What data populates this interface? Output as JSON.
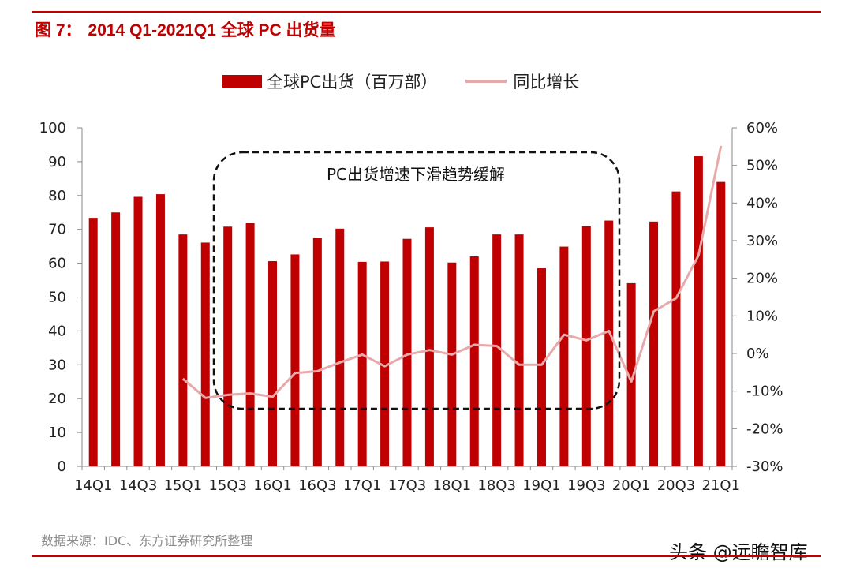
{
  "figure": {
    "number": "图 7：",
    "title": "2014 Q1-2021Q1 全球 PC 出货量"
  },
  "source": "数据来源：IDC、东方证券研究所整理",
  "watermark": "头条 @远瞻智库",
  "colors": {
    "bar": "#c00000",
    "line": "#e8a9ab",
    "title": "#c00000",
    "axis": "#888888"
  },
  "chart_data": {
    "type": "bar+line",
    "title": "2014 Q1-2021Q1 全球 PC 出货量",
    "annotation": "PC出货增速下滑趋势缓解",
    "categories": [
      "14Q1",
      "14Q2",
      "14Q3",
      "14Q4",
      "15Q1",
      "15Q2",
      "15Q3",
      "15Q4",
      "16Q1",
      "16Q2",
      "16Q3",
      "16Q4",
      "17Q1",
      "17Q2",
      "17Q3",
      "17Q4",
      "18Q1",
      "18Q2",
      "18Q3",
      "18Q4",
      "19Q1",
      "19Q2",
      "19Q3",
      "19Q4",
      "20Q1",
      "20Q2",
      "20Q3",
      "20Q4",
      "21Q1"
    ],
    "x_tick_labels": [
      "14Q1",
      "14Q3",
      "15Q1",
      "15Q3",
      "16Q1",
      "16Q3",
      "17Q1",
      "17Q3",
      "18Q1",
      "18Q3",
      "19Q1",
      "19Q3",
      "20Q1",
      "20Q3",
      "21Q1"
    ],
    "series": [
      {
        "name": "全球PC出货（百万部）",
        "axis": "left",
        "type": "bar",
        "values": [
          73.4,
          75.0,
          79.6,
          80.4,
          68.5,
          66.1,
          70.8,
          71.9,
          60.6,
          62.6,
          67.5,
          70.2,
          60.4,
          60.5,
          67.2,
          70.6,
          60.2,
          62.0,
          68.5,
          68.5,
          58.5,
          64.9,
          70.9,
          72.6,
          54.1,
          72.3,
          81.2,
          91.6,
          84.0
        ]
      },
      {
        "name": "同比增长",
        "axis": "right",
        "type": "line",
        "values": [
          null,
          null,
          null,
          null,
          -6.7,
          -11.8,
          -11.0,
          -10.6,
          -11.5,
          -5.2,
          -4.7,
          -2.4,
          -0.3,
          -3.4,
          -0.3,
          0.9,
          -0.3,
          2.3,
          2.0,
          -3.0,
          -3.0,
          5.0,
          3.5,
          6.0,
          -7.5,
          11.2,
          14.7,
          26.1,
          55.2
        ]
      }
    ],
    "y_left": {
      "min": 0,
      "max": 100,
      "ticks": [
        "0",
        "10",
        "20",
        "30",
        "40",
        "50",
        "60",
        "70",
        "80",
        "90",
        "100"
      ]
    },
    "y_right": {
      "min": -30,
      "max": 60,
      "ticks": [
        "-30%",
        "-20%",
        "-10%",
        "0%",
        "10%",
        "20%",
        "30%",
        "40%",
        "50%",
        "60%"
      ]
    },
    "legend": "top"
  }
}
